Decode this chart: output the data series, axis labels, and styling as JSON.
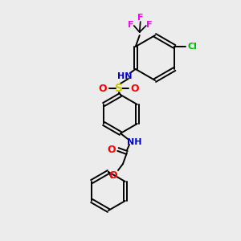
{
  "bg_color": "#ececec",
  "bond_color": "#000000",
  "atom_colors": {
    "N": "#0000cc",
    "O": "#ff0000",
    "S": "#cccc00",
    "F": "#ff00ff",
    "Cl": "#00bb00"
  },
  "figsize": [
    3.0,
    3.0
  ],
  "dpi": 100
}
